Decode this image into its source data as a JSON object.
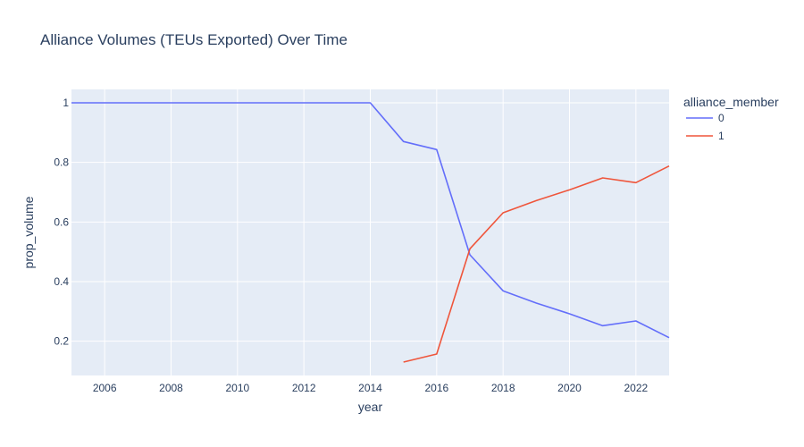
{
  "chart_data": {
    "type": "line",
    "title": "Alliance Volumes (TEUs Exported) Over Time",
    "xlabel": "year",
    "ylabel": "prop_volume",
    "xlim": [
      2005,
      2023
    ],
    "ylim": [
      0.085,
      1.045
    ],
    "x_ticks": [
      2006,
      2008,
      2010,
      2012,
      2014,
      2016,
      2018,
      2020,
      2022
    ],
    "y_ticks": [
      0.2,
      0.4,
      0.6,
      0.8,
      1
    ],
    "grid": true,
    "legend": {
      "title": "alliance_member",
      "placement": "top-right"
    },
    "series": [
      {
        "name": "0",
        "color": "#636efa",
        "x": [
          2005,
          2006,
          2007,
          2008,
          2009,
          2010,
          2011,
          2012,
          2013,
          2014,
          2015,
          2016,
          2017,
          2018,
          2019,
          2020,
          2021,
          2022,
          2023
        ],
        "y": [
          1,
          1,
          1,
          1,
          1,
          1,
          1,
          1,
          1,
          1,
          0.87,
          0.843,
          0.49,
          0.369,
          0.328,
          0.292,
          0.252,
          0.268,
          0.212
        ]
      },
      {
        "name": "1",
        "color": "#ef553b",
        "x": [
          2015,
          2016,
          2017,
          2018,
          2019,
          2020,
          2021,
          2022,
          2023
        ],
        "y": [
          0.13,
          0.157,
          0.51,
          0.631,
          0.672,
          0.708,
          0.748,
          0.732,
          0.788
        ]
      }
    ]
  }
}
